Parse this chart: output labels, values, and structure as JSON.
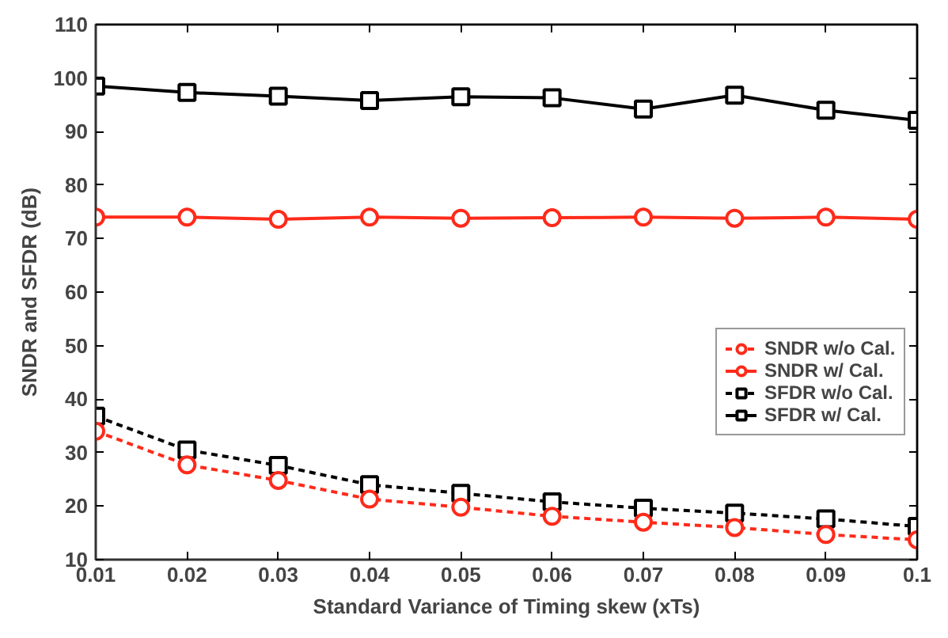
{
  "chart_data": {
    "type": "line",
    "xlabel": "Standard Variance of Timing skew (xTs)",
    "ylabel": "SNDR and SFDR (dB)",
    "x": [
      0.01,
      0.02,
      0.03,
      0.04,
      0.05,
      0.06,
      0.07,
      0.08,
      0.09,
      0.1
    ],
    "xlim": [
      0.01,
      0.1
    ],
    "xticks": [
      0.01,
      0.02,
      0.03,
      0.04,
      0.05,
      0.06,
      0.07,
      0.08,
      0.09,
      0.1
    ],
    "ylim": [
      10,
      110
    ],
    "yticks": [
      10,
      20,
      30,
      40,
      50,
      60,
      70,
      80,
      90,
      100,
      110
    ],
    "grid": false,
    "legend": "bottom right",
    "series": [
      {
        "name": "SNDR w/o Cal.",
        "color": "#ff2a1a",
        "marker": "circle",
        "line_style": "dashed",
        "values": [
          34,
          27.7,
          24.8,
          21.3,
          19.8,
          18.1,
          17,
          16,
          14.7,
          13.7
        ]
      },
      {
        "name": "SNDR w/ Cal.",
        "color": "#ff2a1a",
        "marker": "circle",
        "line_style": "solid",
        "values": [
          74,
          74,
          73.6,
          74,
          73.8,
          73.9,
          74,
          73.8,
          74,
          73.6
        ]
      },
      {
        "name": "SFDR w/o Cal.",
        "color": "#000000",
        "marker": "square",
        "line_style": "dashed",
        "values": [
          36.8,
          30.5,
          27.6,
          24,
          22.4,
          20.8,
          19.6,
          18.7,
          17.6,
          16.2
        ]
      },
      {
        "name": "SFDR w/ Cal.",
        "color": "#000000",
        "marker": "square",
        "line_style": "solid",
        "values": [
          98.5,
          97.3,
          96.6,
          95.8,
          96.5,
          96.3,
          94.2,
          96.8,
          94.0,
          92.1
        ]
      }
    ]
  }
}
